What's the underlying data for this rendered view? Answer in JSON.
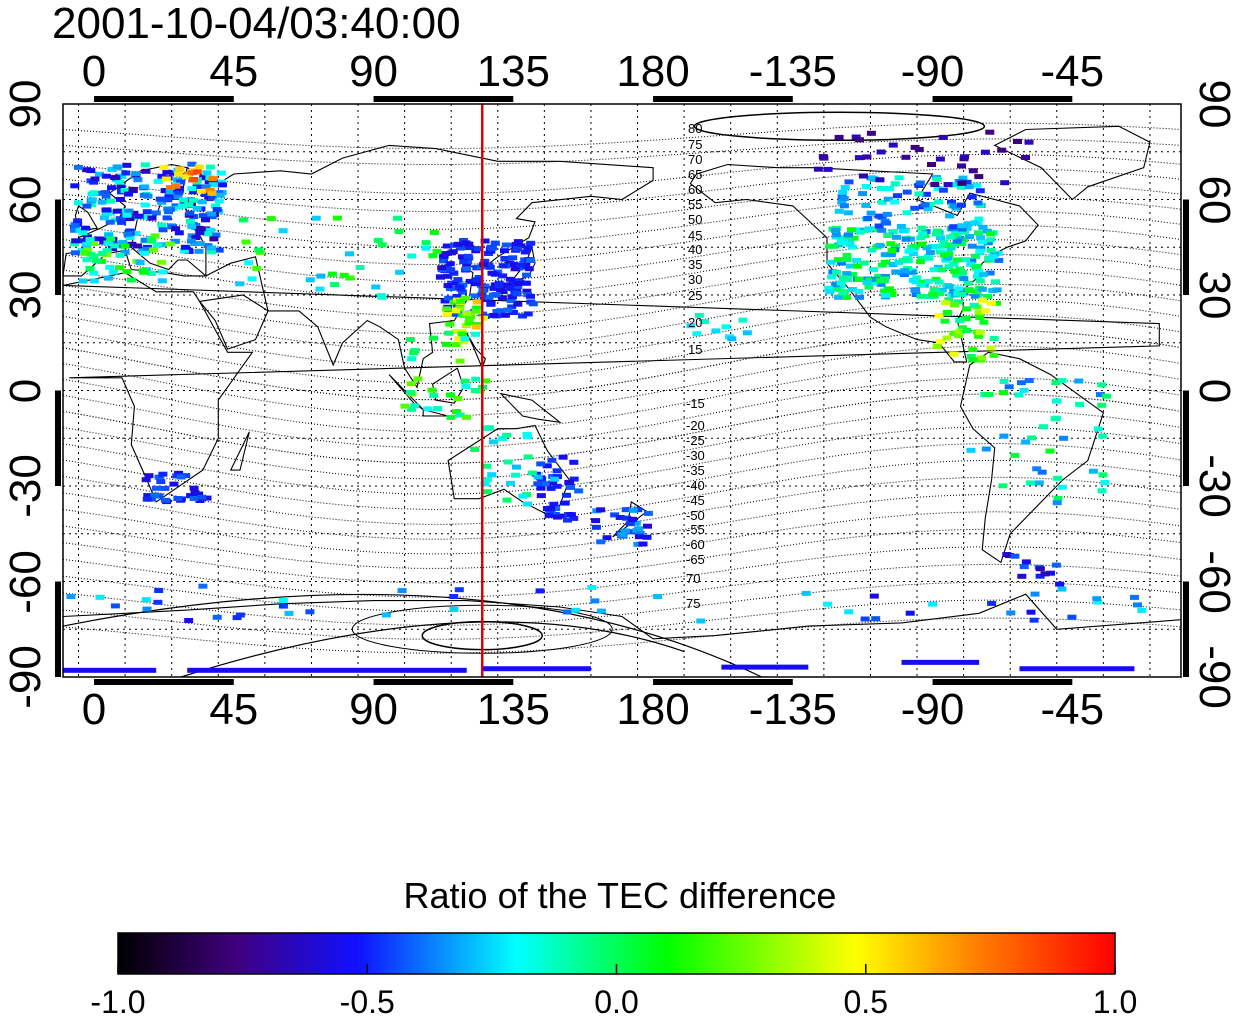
{
  "title": "2001-10-04/03:40:00",
  "map": {
    "lon_ticks_top": [
      "0",
      "45",
      "90",
      "135",
      "180",
      "-135",
      "-90",
      "-45"
    ],
    "lon_ticks_bottom": [
      "0",
      "45",
      "90",
      "135",
      "180",
      "-135",
      "-90",
      "-45"
    ],
    "lat_ticks_left": [
      "90",
      "60",
      "30",
      "0",
      "-30",
      "-60",
      "-90"
    ],
    "lat_ticks_right": [
      "90",
      "60",
      "30",
      "0",
      "-30",
      "-60",
      "-90"
    ],
    "meridian_marker_lon": 125,
    "marker_color": "#dd0000",
    "magnetic_contour_labels_north": [
      "80",
      "75",
      "70",
      "65",
      "60",
      "55",
      "50",
      "45",
      "40",
      "35",
      "30",
      "25",
      "20",
      "15"
    ],
    "magnetic_contour_labels_south": [
      "-15",
      "-20",
      "-25",
      "-30",
      "-35",
      "-40",
      "-45",
      "-50",
      "-55",
      "-60",
      "-65",
      "70",
      "75"
    ]
  },
  "colorbar": {
    "title": "Ratio of the TEC difference",
    "ticks": [
      "-1.0",
      "-0.5",
      "0.0",
      "0.5",
      "1.0"
    ],
    "range": [
      -1.0,
      1.0
    ],
    "colormap_stops": [
      "#000000",
      "#400080",
      "#0000ff",
      "#00ffff",
      "#00ff00",
      "#ffff00",
      "#ff8000",
      "#ff0000"
    ]
  }
}
